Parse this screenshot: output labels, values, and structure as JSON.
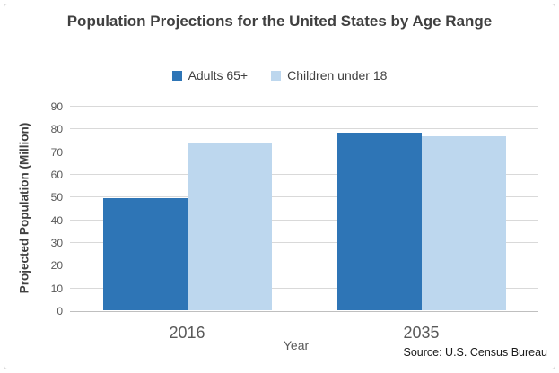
{
  "window": {
    "background_color": "#FFFFFF",
    "border_color": "#D6D6D6"
  },
  "chart_data": {
    "type": "bar",
    "title": "Population Projections for the United States by Age Range",
    "categories": [
      "2016",
      "2035"
    ],
    "series": [
      {
        "name": "Adults 65+",
        "color": "#2E75B6",
        "values": [
          49.2,
          78.0
        ]
      },
      {
        "name": "Children under 18",
        "color": "#BDD7EE",
        "values": [
          73.6,
          76.5
        ]
      }
    ],
    "xlabel": "Year",
    "ylabel": "Projected Population (Million)",
    "ylim": [
      0,
      90
    ],
    "yticks": [
      0,
      10,
      20,
      30,
      40,
      50,
      60,
      70,
      80,
      90
    ],
    "grid": "horizontal",
    "gridline_color": "#D9D9D9",
    "baseline_color": "#BFBFBF",
    "legend_position": "top",
    "tick_label_color": "#595959",
    "title_color": "#404040",
    "source": "Source: U.S. Census Bureau"
  }
}
